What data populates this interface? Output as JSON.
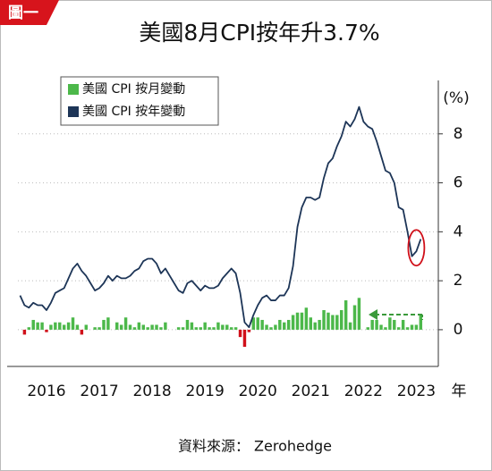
{
  "chart_data": {
    "type": "combo",
    "badge": "圖一",
    "title": "美國8月CPI按年升3.7%",
    "y_label": "(%)",
    "x_label": "年",
    "source": "資料來源： Zerohedge",
    "categories": [
      null,
      null,
      null,
      null,
      null,
      null,
      "2016",
      null,
      null,
      null,
      null,
      null,
      null,
      null,
      null,
      null,
      null,
      null,
      "2017",
      null,
      null,
      null,
      null,
      null,
      null,
      null,
      null,
      null,
      null,
      null,
      "2018",
      null,
      null,
      null,
      null,
      null,
      null,
      null,
      null,
      null,
      null,
      null,
      "2019",
      null,
      null,
      null,
      null,
      null,
      null,
      null,
      null,
      null,
      null,
      null,
      "2020",
      null,
      null,
      null,
      null,
      null,
      null,
      null,
      null,
      null,
      null,
      null,
      "2021",
      null,
      null,
      null,
      null,
      null,
      null,
      null,
      null,
      null,
      null,
      null,
      "2022",
      null,
      null,
      null,
      null,
      null,
      null,
      null,
      null,
      null,
      null,
      null,
      "2023",
      null
    ],
    "series": [
      {
        "name": "美國 CPI 按月變動",
        "type": "bar",
        "color": "#4cb84a",
        "negative_color": "#d0101a",
        "values": [
          0.0,
          -0.2,
          0.1,
          0.4,
          0.3,
          0.3,
          -0.1,
          0.2,
          0.3,
          0.3,
          0.2,
          0.3,
          0.5,
          0.2,
          -0.2,
          0.2,
          0.0,
          0.1,
          0.1,
          0.4,
          0.5,
          0.0,
          0.3,
          0.2,
          0.5,
          0.2,
          0.1,
          0.3,
          0.2,
          0.1,
          0.2,
          0.2,
          0.1,
          0.3,
          0.0,
          0.0,
          0.1,
          0.1,
          0.4,
          0.3,
          0.1,
          0.1,
          0.3,
          0.1,
          0.1,
          0.3,
          0.2,
          0.2,
          0.1,
          0.1,
          -0.3,
          -0.7,
          -0.1,
          0.5,
          0.5,
          0.4,
          0.2,
          0.1,
          0.2,
          0.4,
          0.3,
          0.4,
          0.6,
          0.7,
          0.7,
          0.9,
          0.5,
          0.3,
          0.4,
          0.8,
          0.7,
          0.6,
          0.6,
          0.8,
          1.2,
          0.3,
          1.0,
          1.3,
          0.0,
          0.1,
          0.4,
          0.4,
          0.2,
          0.1,
          0.5,
          0.4,
          0.1,
          0.4,
          0.1,
          0.2,
          0.2,
          0.6
        ]
      },
      {
        "name": "美國 CPI 按年變動",
        "type": "line",
        "color": "#1d3557",
        "values": [
          1.4,
          1.0,
          0.9,
          1.1,
          1.0,
          1.0,
          0.8,
          1.1,
          1.5,
          1.6,
          1.7,
          2.1,
          2.5,
          2.7,
          2.4,
          2.2,
          1.9,
          1.6,
          1.7,
          1.9,
          2.2,
          2.0,
          2.2,
          2.1,
          2.1,
          2.2,
          2.4,
          2.5,
          2.8,
          2.9,
          2.9,
          2.7,
          2.3,
          2.5,
          2.2,
          1.9,
          1.6,
          1.5,
          1.9,
          2.0,
          1.8,
          1.6,
          1.8,
          1.7,
          1.7,
          1.8,
          2.1,
          2.3,
          2.5,
          2.3,
          1.5,
          0.3,
          0.1,
          0.6,
          1.0,
          1.3,
          1.4,
          1.2,
          1.2,
          1.4,
          1.4,
          1.7,
          2.6,
          4.2,
          5.0,
          5.4,
          5.4,
          5.3,
          5.4,
          6.2,
          6.8,
          7.0,
          7.5,
          7.9,
          8.5,
          8.3,
          8.6,
          9.1,
          8.5,
          8.3,
          8.2,
          7.7,
          7.1,
          6.5,
          6.4,
          6.0,
          5.0,
          4.9,
          4.0,
          3.0,
          3.2,
          3.7
        ]
      }
    ],
    "ylim": [
      -1.5,
      10
    ],
    "yticks": [
      0,
      2,
      4,
      6,
      8
    ],
    "grid": true,
    "legend_position": "upper left"
  }
}
